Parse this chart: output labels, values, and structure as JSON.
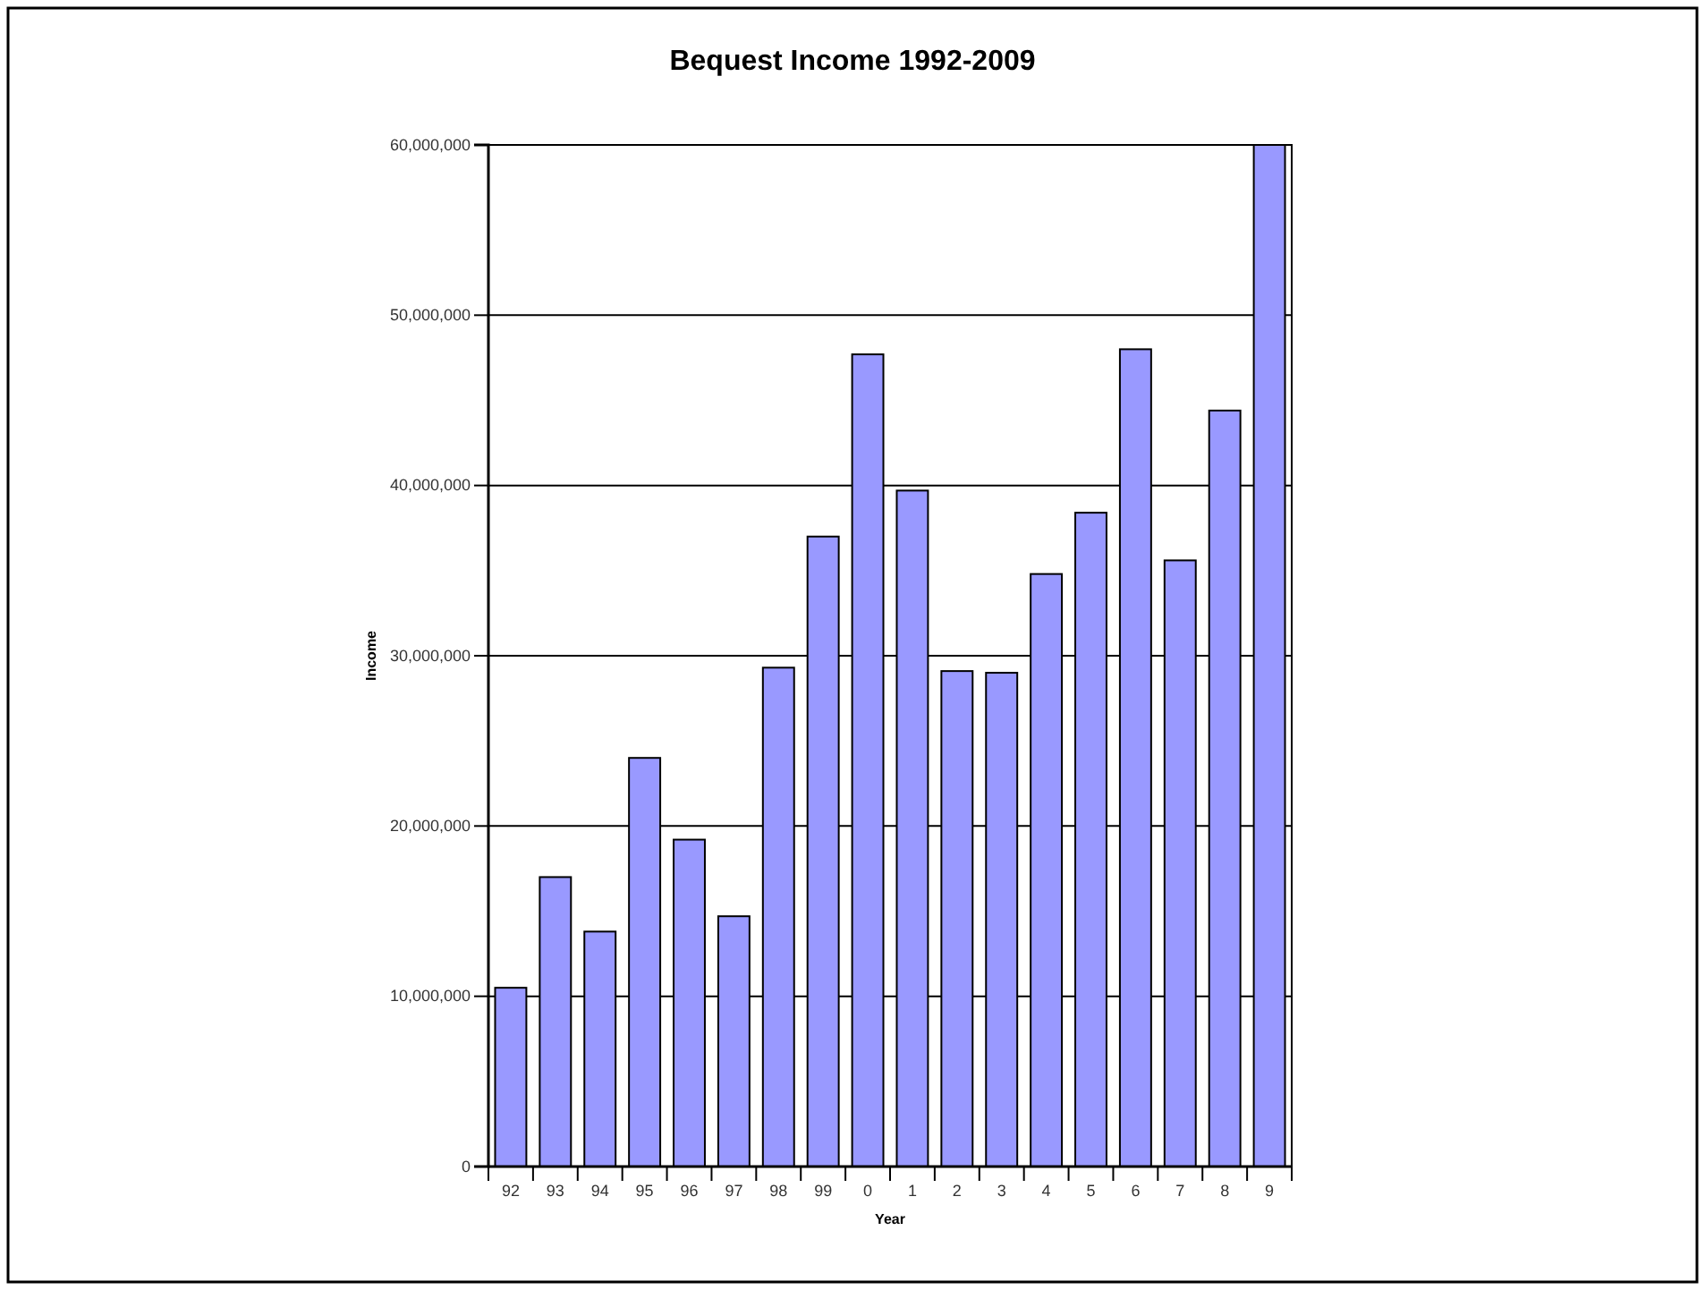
{
  "chart_data": {
    "type": "bar",
    "title": "Bequest Income 1992-2009",
    "xlabel": "Year",
    "ylabel": "Income",
    "categories": [
      "92",
      "93",
      "94",
      "95",
      "96",
      "97",
      "98",
      "99",
      "0",
      "1",
      "2",
      "3",
      "4",
      "5",
      "6",
      "7",
      "8",
      "9"
    ],
    "values": [
      10500000,
      17000000,
      13800000,
      24000000,
      19200000,
      14700000,
      29300000,
      37000000,
      47700000,
      39700000,
      29100000,
      29000000,
      34800000,
      38400000,
      48000000,
      35600000,
      44400000,
      60000000
    ],
    "color": "#9999ff",
    "ylim": [
      0,
      60000000
    ],
    "yticks": [
      0,
      {
        "value": 10000000,
        "label": "10,000,000"
      },
      {
        "value": 20000000,
        "label": "20,000,000"
      },
      {
        "value": 30000000,
        "label": "30,000,000"
      },
      {
        "value": 40000000,
        "label": "40,000,000"
      },
      {
        "value": 50000000,
        "label": "50,000,000"
      },
      {
        "value": 60000000,
        "label": "60,000,000"
      }
    ],
    "grid": "y"
  }
}
